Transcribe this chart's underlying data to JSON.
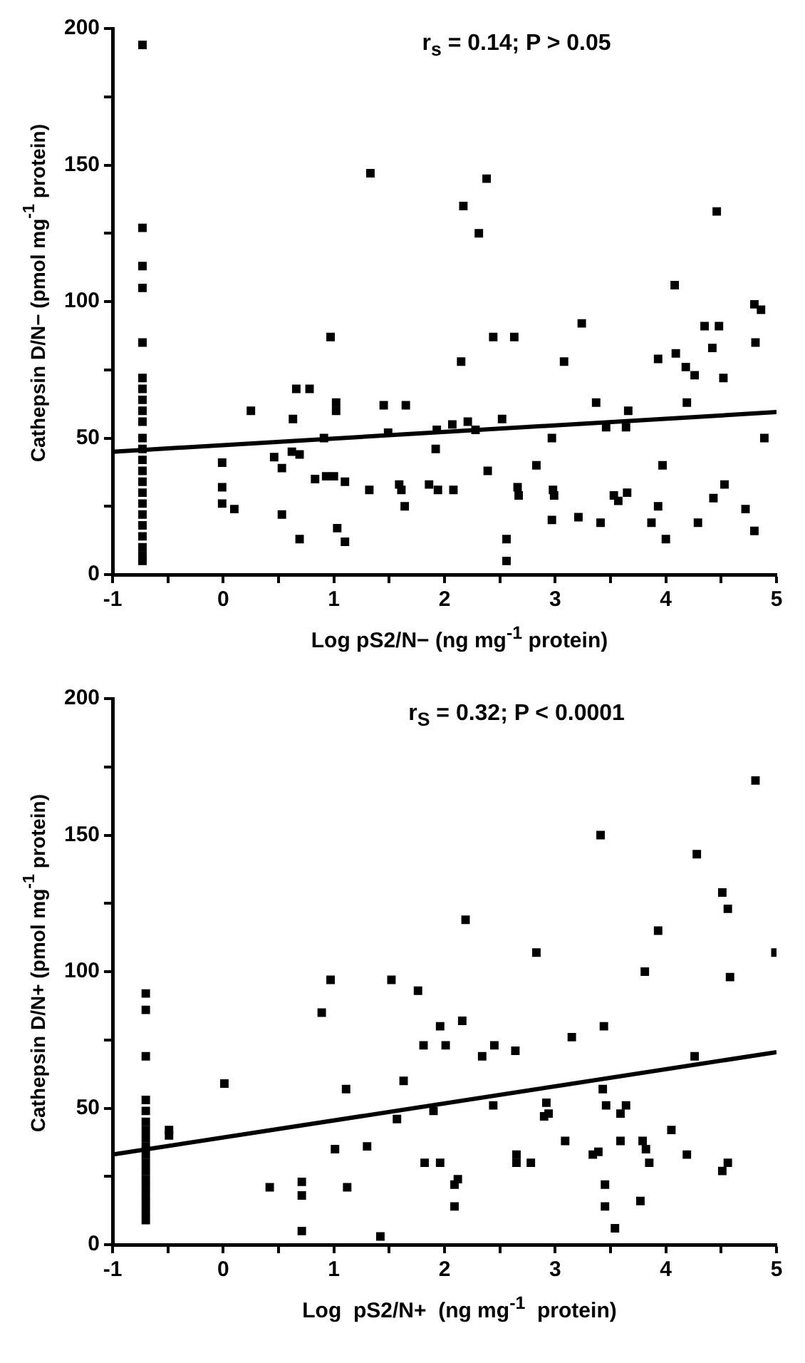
{
  "chart_data": [
    {
      "type": "scatter",
      "xlabel": "Log pS2/N− (ng mg$^{-1}$ protein)",
      "ylabel": "Cathepsin D/N− (pmol mg$^{-1}$ protein)",
      "annotations": [
        "r$_{s}$ = 0.14; P > 0.05"
      ],
      "xlim": [
        -1,
        5
      ],
      "xticks": [
        -1,
        {
          "value": -0.5,
          "label": null
        },
        0,
        {
          "value": 0.5,
          "label": null
        },
        1,
        {
          "value": 1.5,
          "label": null
        },
        2,
        {
          "value": 2.5,
          "label": null
        },
        3,
        {
          "value": 3.5,
          "label": null
        },
        4,
        {
          "value": 4.5,
          "label": null
        },
        5
      ],
      "ylim": [
        0,
        200
      ],
      "yticks": [
        0,
        {
          "value": 25,
          "label": null
        },
        50,
        {
          "value": 75,
          "label": null
        },
        100,
        {
          "value": 125,
          "label": null
        },
        150,
        {
          "value": 175,
          "label": null
        },
        200
      ],
      "grid": false,
      "legend": false,
      "marker": "square",
      "series": [
        {
          "type": "scatter",
          "color": "#000000",
          "x": [
            -0.73,
            -0.73,
            -0.73,
            -0.73,
            -0.73,
            -0.73,
            -0.73,
            -0.73,
            -0.73,
            -0.73,
            -0.73,
            -0.73,
            -0.73,
            -0.73,
            -0.73,
            -0.73,
            -0.73,
            -0.73,
            -0.73,
            -0.73,
            -0.73,
            -0.73,
            -0.73,
            1.33,
            0.97,
            0.66,
            0.78,
            0.25,
            0.63,
            1.02,
            1.02,
            1.45,
            1.65,
            0.91,
            1.49,
            1.93,
            1.92,
            -0.01,
            0.46,
            0.53,
            0.62,
            0.69,
            -0.01,
            -0.01,
            0.1,
            0.83,
            0.93,
            1.0,
            1.1,
            1.32,
            1.59,
            1.61,
            1.64,
            1.86,
            1.94,
            0.53,
            0.69,
            1.03,
            1.1,
            2.38,
            2.17,
            2.31,
            4.46,
            4.08,
            4.8,
            4.86,
            3.24,
            4.35,
            4.48,
            2.44,
            2.63,
            4.81,
            2.15,
            3.08,
            3.93,
            4.09,
            4.18,
            4.26,
            4.42,
            4.52,
            3.37,
            4.19,
            2.52,
            2.21,
            2.07,
            2.28,
            3.66,
            3.64,
            3.46,
            2.97,
            4.89,
            2.83,
            2.39,
            3.97,
            4.53,
            2.08,
            2.66,
            2.67,
            2.98,
            2.99,
            3.53,
            3.57,
            3.65,
            3.93,
            4.43,
            4.72,
            2.97,
            3.21,
            3.41,
            3.87,
            4.29,
            4.0,
            4.8,
            2.56,
            2.56
          ],
          "values": [
            194,
            127,
            113,
            105,
            85,
            72,
            68,
            64,
            60,
            56,
            50,
            46,
            42,
            38,
            34,
            30,
            26,
            22,
            18,
            14,
            10,
            7,
            5,
            147,
            87,
            68,
            68,
            60,
            57,
            63,
            60,
            62,
            62,
            50,
            52,
            53,
            46,
            41,
            43,
            39,
            45,
            44,
            32,
            26,
            24,
            35,
            36,
            36,
            34,
            31,
            33,
            31,
            25,
            33,
            31,
            22,
            13,
            17,
            12,
            145,
            135,
            125,
            133,
            106,
            99,
            97,
            92,
            91,
            91,
            87,
            87,
            85,
            78,
            78,
            79,
            81,
            76,
            73,
            83,
            72,
            63,
            63,
            57,
            56,
            55,
            53,
            60,
            54,
            54,
            50,
            50,
            40,
            38,
            40,
            33,
            31,
            32,
            29,
            31,
            29,
            29,
            27,
            30,
            25,
            28,
            24,
            20,
            21,
            19,
            19,
            19,
            13,
            16,
            13,
            5
          ]
        },
        {
          "type": "line",
          "color": "#000000",
          "marker": "none",
          "x": [
            -1,
            5
          ],
          "values": [
            45,
            59.5
          ]
        }
      ]
    },
    {
      "type": "scatter",
      "xlabel": "Log  pS2/N+  (ng mg$^{-1}$  protein)",
      "ylabel": "Cathepsin D/N+ (pmol mg$^{-1}$ protein)",
      "annotations": [
        "r$_{S}$ = 0.32; P < 0.0001"
      ],
      "xlim": [
        -1,
        5
      ],
      "xticks": [
        -1,
        {
          "value": -0.5,
          "label": null
        },
        0,
        {
          "value": 0.5,
          "label": null
        },
        1,
        {
          "value": 1.5,
          "label": null
        },
        2,
        {
          "value": 2.5,
          "label": null
        },
        3,
        {
          "value": 3.5,
          "label": null
        },
        4,
        {
          "value": 4.5,
          "label": null
        },
        5
      ],
      "ylim": [
        0,
        200
      ],
      "yticks": [
        0,
        {
          "value": 25,
          "label": null
        },
        50,
        {
          "value": 75,
          "label": null
        },
        100,
        {
          "value": 125,
          "label": null
        },
        150,
        {
          "value": 175,
          "label": null
        },
        200
      ],
      "grid": false,
      "legend": false,
      "marker": "square",
      "series": [
        {
          "type": "scatter",
          "color": "#000000",
          "x": [
            -0.7,
            -0.7,
            -0.7,
            -0.7,
            -0.7,
            -0.7,
            -0.7,
            -0.7,
            -0.7,
            -0.7,
            -0.7,
            -0.7,
            -0.7,
            -0.7,
            -0.7,
            -0.7,
            -0.7,
            -0.7,
            -0.49,
            -0.49,
            0.01,
            0.42,
            0.71,
            0.71,
            0.71,
            0.97,
            0.89,
            1.01,
            1.11,
            1.12,
            1.3,
            1.42,
            1.52,
            1.57,
            1.63,
            1.76,
            1.81,
            1.82,
            1.9,
            1.96,
            1.96,
            4.81,
            3.41,
            4.28,
            4.51,
            4.56,
            2.19,
            3.93,
            4.99,
            2.83,
            3.81,
            4.58,
            2.16,
            2.01,
            2.34,
            2.45,
            2.64,
            3.15,
            3.44,
            4.26,
            2.44,
            2.92,
            2.9,
            2.94,
            3.43,
            3.46,
            3.64,
            3.59,
            3.09,
            3.59,
            3.79,
            3.82,
            3.85,
            4.05,
            3.34,
            3.39,
            4.19,
            2.65,
            2.65,
            2.78,
            2.09,
            2.12,
            2.09,
            4.51,
            4.56,
            3.45,
            3.45,
            3.77,
            3.54
          ],
          "values": [
            92,
            86,
            69,
            53,
            49,
            45,
            42,
            39,
            36,
            33,
            30,
            27,
            24,
            21,
            18,
            15,
            12,
            9,
            42,
            40,
            59,
            21,
            23,
            18,
            5,
            97,
            85,
            35,
            57,
            21,
            36,
            3,
            97,
            46,
            60,
            93,
            73,
            30,
            49,
            80,
            30,
            170,
            150,
            143,
            129,
            123,
            119,
            115,
            107,
            107,
            100,
            98,
            82,
            73,
            69,
            73,
            71,
            76,
            80,
            69,
            51,
            52,
            47,
            48,
            57,
            51,
            51,
            48,
            38,
            38,
            38,
            35,
            30,
            42,
            33,
            34,
            33,
            33,
            30,
            30,
            22,
            24,
            14,
            27,
            30,
            22,
            14,
            16,
            6
          ]
        },
        {
          "type": "line",
          "color": "#000000",
          "marker": "none",
          "x": [
            -1,
            5
          ],
          "values": [
            33,
            70.5
          ]
        }
      ]
    }
  ]
}
